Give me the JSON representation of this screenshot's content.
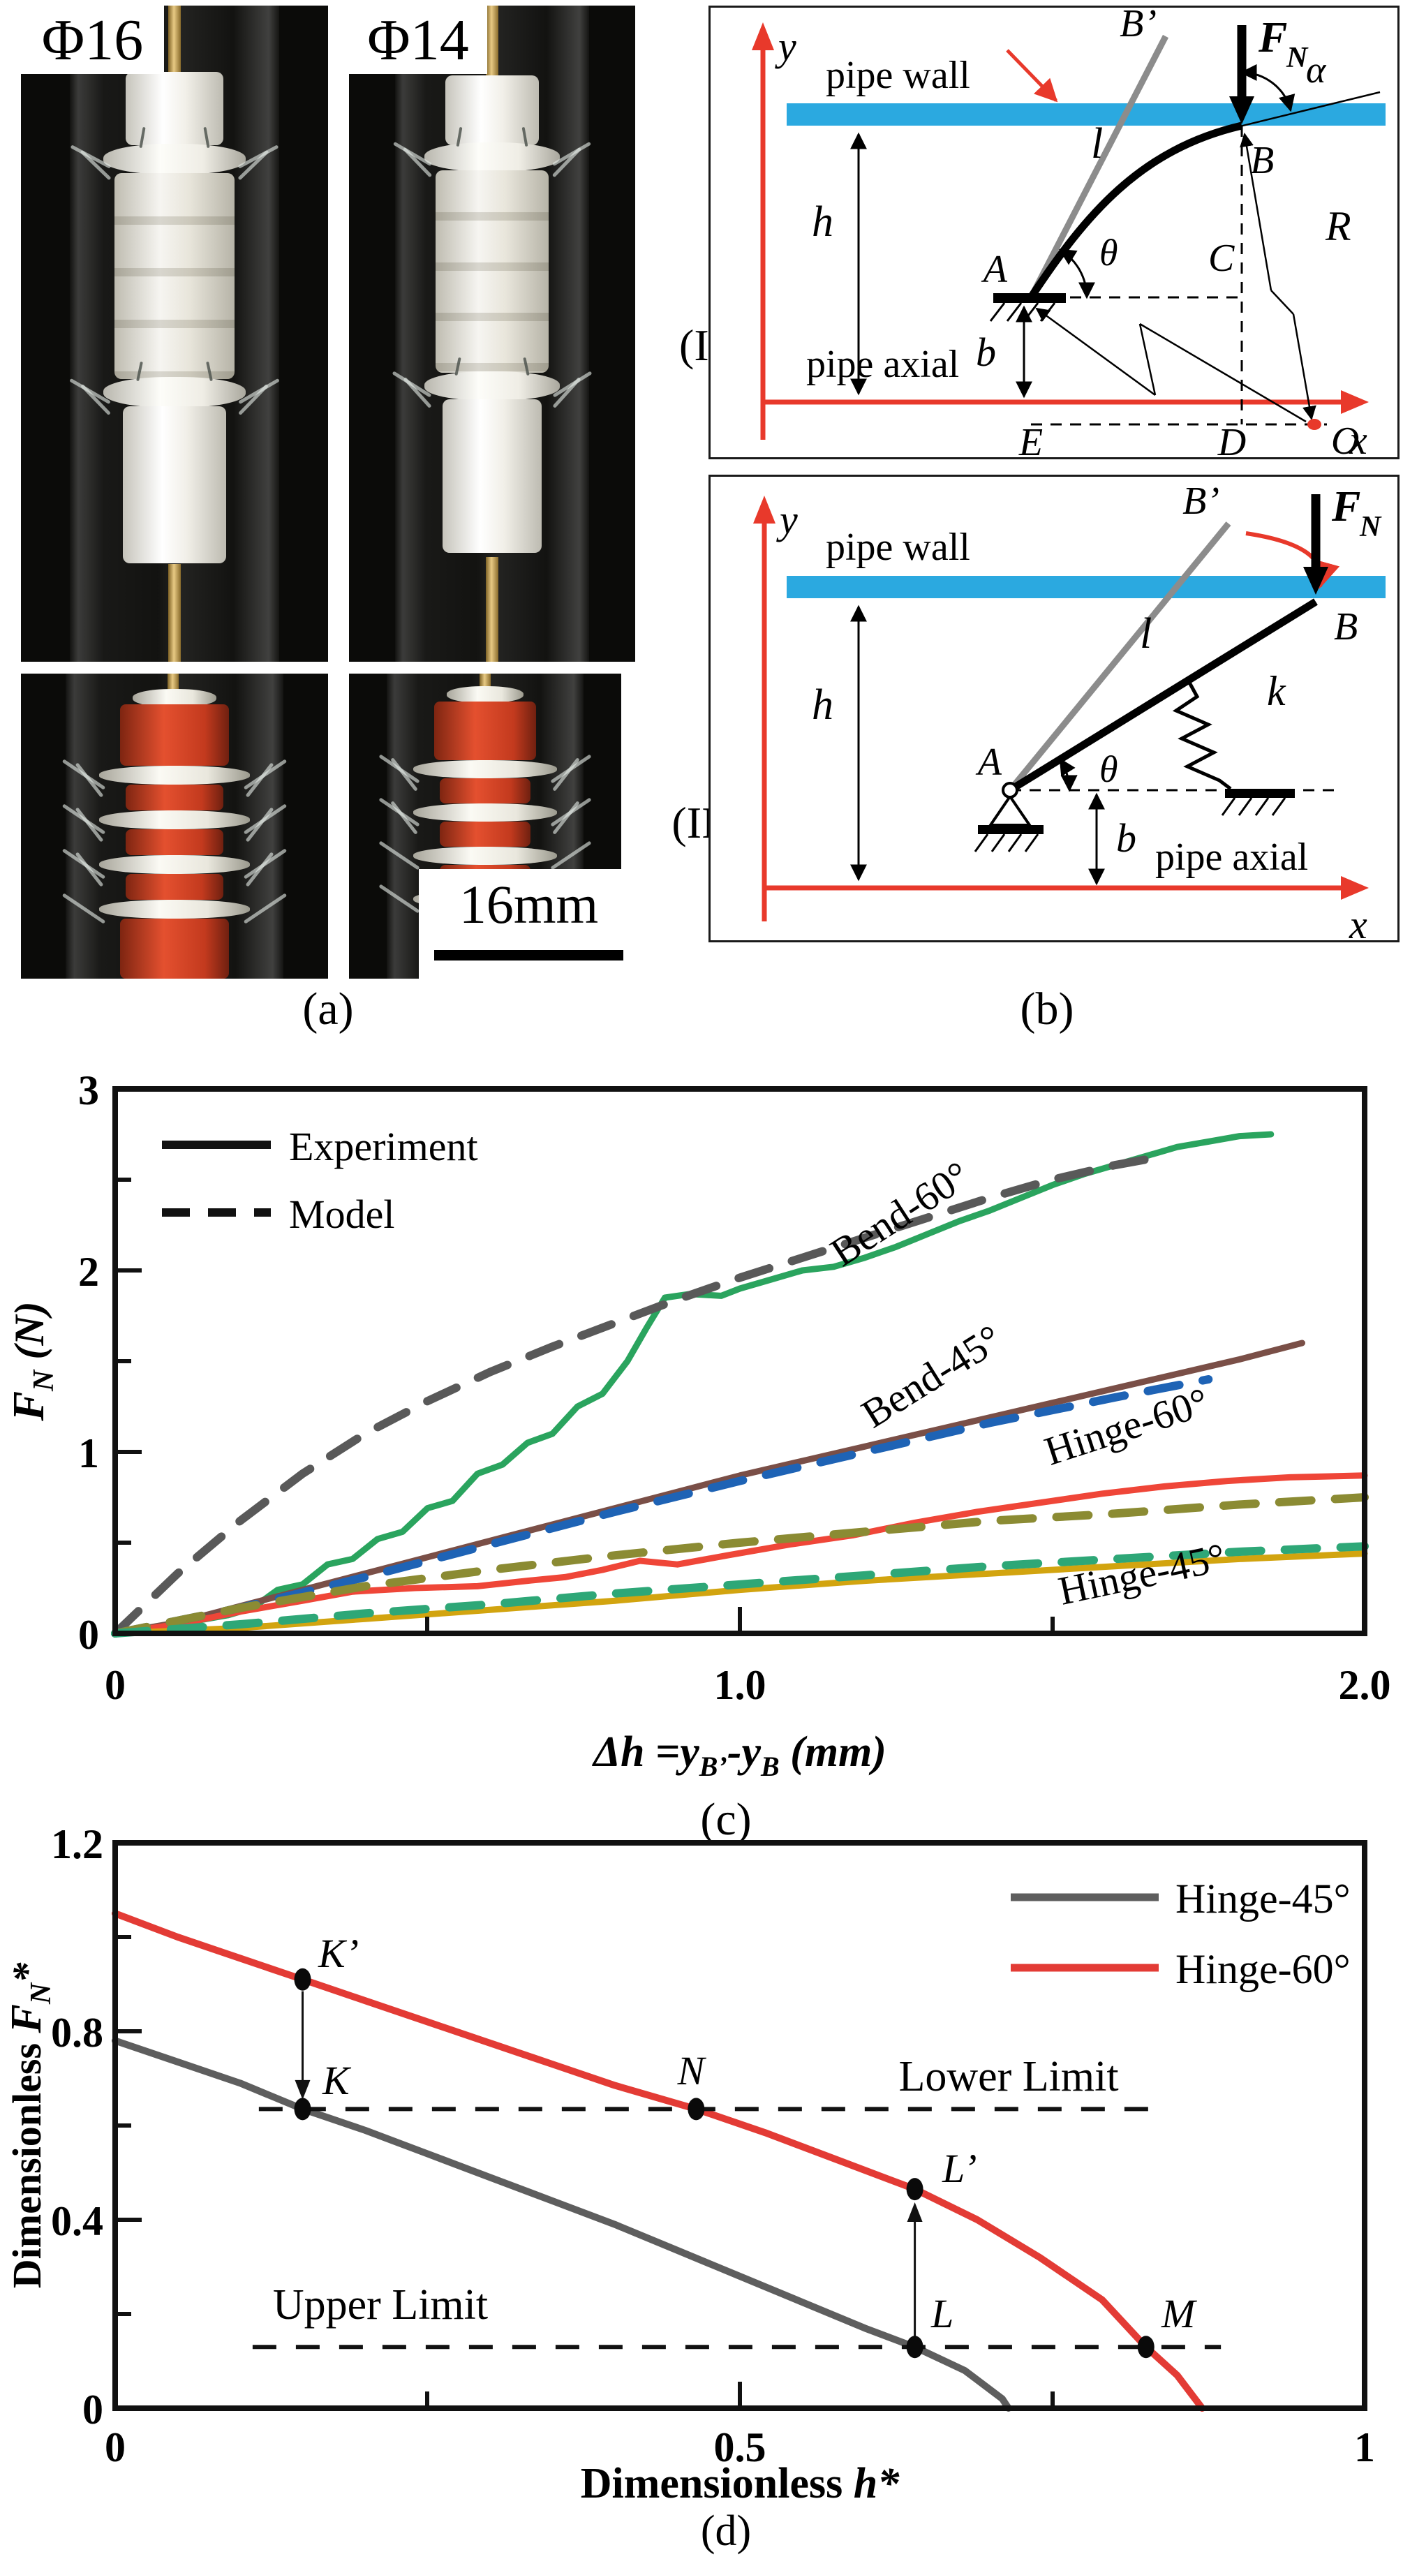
{
  "figure": {
    "captions": {
      "a": "(a)",
      "b": "(b)",
      "c": "(c)",
      "d": "(d)"
    },
    "row_labels": {
      "I": "(I)",
      "II": "(II)"
    }
  },
  "panel_a": {
    "label_phi16": "Φ16",
    "label_phi14": "Φ14",
    "scale_bar": "16mm"
  },
  "panel_b": {
    "colors": {
      "pipe_wall": "#2ba9e0",
      "axis": "#e8392b",
      "rod_gray": "#8c8c8c"
    },
    "diagram1": {
      "y": "y",
      "x": "x",
      "pipe_wall": "pipe wall",
      "pipe_axial": "pipe axial",
      "force": "F",
      "force_sub": "N",
      "alpha": "α",
      "theta": "θ",
      "h": "h",
      "l": "l",
      "b": "b",
      "R": "R",
      "A": "A",
      "B": "B",
      "B_prime": "B’",
      "C": "C",
      "D": "D",
      "E": "E",
      "O": "O"
    },
    "diagram2": {
      "y": "y",
      "x": "x",
      "pipe_wall": "pipe wall",
      "pipe_axial": "pipe axial",
      "force": "F",
      "force_sub": "N",
      "theta": "θ",
      "h": "h",
      "l": "l",
      "b": "b",
      "k": "k",
      "A": "A",
      "B": "B",
      "B_prime": "B’"
    }
  },
  "chart_c": {
    "legend": {
      "experiment": "Experiment",
      "model": "Model"
    },
    "yticks": [
      "0",
      "1",
      "2",
      "3"
    ],
    "xticks": [
      "0",
      "1.0",
      "2.0"
    ],
    "ylabel": {
      "f": "F",
      "sub": "N",
      "unit": " (N)"
    },
    "xlabel": {
      "p1": "Δh =",
      "y1": "y",
      "s1": "B’",
      "p2": "-",
      "y2": "y",
      "s2": "B",
      "p3": " (mm)"
    },
    "curve_labels": {
      "bend60": "Bend-60°",
      "bend45": "Bend-45°",
      "hinge60": "Hinge-60°",
      "hinge45": "Hinge-45°"
    }
  },
  "chart_d": {
    "legend": {
      "hinge45": "Hinge-45°",
      "hinge60": "Hinge-60°"
    },
    "yticks": [
      "0",
      "0.4",
      "0.8",
      "1.2"
    ],
    "xticks": [
      "0",
      "0.5",
      "1"
    ],
    "ylabel": {
      "p1": "Dimensionless ",
      "f": "F",
      "sub": "N",
      "star": "*"
    },
    "xlabel": {
      "p1": "Dimensionless ",
      "h": "h",
      "star": "*"
    },
    "limits": {
      "lower": "Lower Limit",
      "upper": "Upper Limit"
    }
  },
  "chart_data": [
    {
      "id": "c",
      "type": "line",
      "title": "",
      "xlabel": "Δh = yB’ - yB (mm)",
      "ylabel": "FN (N)",
      "xlim": [
        0,
        2
      ],
      "ylim": [
        0,
        3
      ],
      "xticks": [
        0,
        1.0,
        2.0
      ],
      "yticks": [
        0,
        1,
        2,
        3
      ],
      "grid": false,
      "legend_position": "top-left",
      "series": [
        {
          "name": "Bend-60° Experiment",
          "style": "solid",
          "color": "#2aa45e",
          "points": [
            [
              0,
              0
            ],
            [
              0.07,
              0.03
            ],
            [
              0.13,
              0.07
            ],
            [
              0.18,
              0.1
            ],
            [
              0.22,
              0.14
            ],
            [
              0.26,
              0.24
            ],
            [
              0.3,
              0.27
            ],
            [
              0.34,
              0.38
            ],
            [
              0.38,
              0.41
            ],
            [
              0.42,
              0.52
            ],
            [
              0.46,
              0.56
            ],
            [
              0.5,
              0.69
            ],
            [
              0.54,
              0.73
            ],
            [
              0.58,
              0.88
            ],
            [
              0.62,
              0.93
            ],
            [
              0.66,
              1.05
            ],
            [
              0.7,
              1.1
            ],
            [
              0.74,
              1.25
            ],
            [
              0.78,
              1.32
            ],
            [
              0.82,
              1.5
            ],
            [
              0.85,
              1.68
            ],
            [
              0.88,
              1.85
            ],
            [
              0.92,
              1.87
            ],
            [
              0.97,
              1.86
            ],
            [
              1.0,
              1.9
            ],
            [
              1.05,
              1.95
            ],
            [
              1.1,
              2.0
            ],
            [
              1.15,
              2.02
            ],
            [
              1.2,
              2.07
            ],
            [
              1.25,
              2.13
            ],
            [
              1.3,
              2.2
            ],
            [
              1.35,
              2.27
            ],
            [
              1.4,
              2.33
            ],
            [
              1.45,
              2.4
            ],
            [
              1.5,
              2.47
            ],
            [
              1.55,
              2.53
            ],
            [
              1.6,
              2.58
            ],
            [
              1.65,
              2.63
            ],
            [
              1.7,
              2.68
            ],
            [
              1.75,
              2.71
            ],
            [
              1.8,
              2.74
            ],
            [
              1.85,
              2.75
            ]
          ]
        },
        {
          "name": "Bend-45° Experiment",
          "style": "solid",
          "color": "#7a4f47",
          "points": [
            [
              0,
              0
            ],
            [
              0.1,
              0.06
            ],
            [
              0.2,
              0.15
            ],
            [
              0.3,
              0.24
            ],
            [
              0.4,
              0.33
            ],
            [
              0.5,
              0.42
            ],
            [
              0.6,
              0.51
            ],
            [
              0.7,
              0.6
            ],
            [
              0.8,
              0.69
            ],
            [
              0.9,
              0.78
            ],
            [
              1.0,
              0.87
            ],
            [
              1.1,
              0.95
            ],
            [
              1.2,
              1.03
            ],
            [
              1.3,
              1.11
            ],
            [
              1.4,
              1.19
            ],
            [
              1.5,
              1.27
            ],
            [
              1.6,
              1.35
            ],
            [
              1.7,
              1.43
            ],
            [
              1.8,
              1.51
            ],
            [
              1.9,
              1.6
            ]
          ]
        },
        {
          "name": "Hinge-60° Experiment",
          "style": "solid",
          "color": "#ef4638",
          "points": [
            [
              0,
              0
            ],
            [
              0.1,
              0.05
            ],
            [
              0.2,
              0.12
            ],
            [
              0.3,
              0.18
            ],
            [
              0.38,
              0.23
            ],
            [
              0.48,
              0.25
            ],
            [
              0.58,
              0.26
            ],
            [
              0.66,
              0.29
            ],
            [
              0.72,
              0.31
            ],
            [
              0.78,
              0.35
            ],
            [
              0.84,
              0.4
            ],
            [
              0.9,
              0.38
            ],
            [
              0.98,
              0.43
            ],
            [
              1.08,
              0.49
            ],
            [
              1.18,
              0.54
            ],
            [
              1.28,
              0.61
            ],
            [
              1.38,
              0.67
            ],
            [
              1.48,
              0.72
            ],
            [
              1.58,
              0.77
            ],
            [
              1.68,
              0.81
            ],
            [
              1.78,
              0.84
            ],
            [
              1.88,
              0.86
            ],
            [
              2.0,
              0.87
            ]
          ]
        },
        {
          "name": "Hinge-45° Experiment",
          "style": "solid",
          "color": "#d2a40f",
          "points": [
            [
              0,
              0
            ],
            [
              0.2,
              0.03
            ],
            [
              0.4,
              0.08
            ],
            [
              0.6,
              0.13
            ],
            [
              0.8,
              0.18
            ],
            [
              1.0,
              0.24
            ],
            [
              1.2,
              0.29
            ],
            [
              1.4,
              0.33
            ],
            [
              1.6,
              0.37
            ],
            [
              1.8,
              0.41
            ],
            [
              2.0,
              0.44
            ]
          ]
        },
        {
          "name": "Bend-60° Model",
          "style": "dashed",
          "color": "#595959",
          "points": [
            [
              0,
              0
            ],
            [
              0.1,
              0.33
            ],
            [
              0.2,
              0.62
            ],
            [
              0.3,
              0.88
            ],
            [
              0.4,
              1.1
            ],
            [
              0.5,
              1.28
            ],
            [
              0.6,
              1.44
            ],
            [
              0.7,
              1.58
            ],
            [
              0.8,
              1.71
            ],
            [
              0.9,
              1.84
            ],
            [
              1.0,
              1.96
            ],
            [
              1.1,
              2.07
            ],
            [
              1.2,
              2.18
            ],
            [
              1.3,
              2.29
            ],
            [
              1.4,
              2.4
            ],
            [
              1.5,
              2.5
            ],
            [
              1.6,
              2.58
            ],
            [
              1.68,
              2.63
            ]
          ]
        },
        {
          "name": "Bend-45° Model",
          "style": "dashed",
          "color": "#1e63b5",
          "points": [
            [
              0,
              0
            ],
            [
              0.2,
              0.14
            ],
            [
              0.4,
              0.31
            ],
            [
              0.6,
              0.49
            ],
            [
              0.8,
              0.67
            ],
            [
              1.0,
              0.84
            ],
            [
              1.2,
              1.0
            ],
            [
              1.4,
              1.16
            ],
            [
              1.6,
              1.3
            ],
            [
              1.75,
              1.4
            ]
          ]
        },
        {
          "name": "Hinge-60° Model",
          "style": "dashed",
          "color": "#8b8b33",
          "points": [
            [
              0,
              0
            ],
            [
              0.2,
              0.14
            ],
            [
              0.4,
              0.26
            ],
            [
              0.6,
              0.35
            ],
            [
              0.8,
              0.43
            ],
            [
              1.0,
              0.5
            ],
            [
              1.2,
              0.56
            ],
            [
              1.4,
              0.62
            ],
            [
              1.6,
              0.66
            ],
            [
              1.8,
              0.71
            ],
            [
              2.0,
              0.75
            ]
          ]
        },
        {
          "name": "Hinge-45° Model",
          "style": "dashed",
          "color": "#2ea777",
          "points": [
            [
              0,
              0
            ],
            [
              0.2,
              0.05
            ],
            [
              0.4,
              0.11
            ],
            [
              0.6,
              0.16
            ],
            [
              0.8,
              0.22
            ],
            [
              1.0,
              0.27
            ],
            [
              1.2,
              0.32
            ],
            [
              1.4,
              0.37
            ],
            [
              1.6,
              0.41
            ],
            [
              1.8,
              0.45
            ],
            [
              2.0,
              0.48
            ]
          ]
        }
      ]
    },
    {
      "id": "d",
      "type": "line",
      "title": "",
      "xlabel": "Dimensionless h*",
      "ylabel": "Dimensionless FN*",
      "xlim": [
        0,
        1
      ],
      "ylim": [
        0,
        1.2
      ],
      "xticks": [
        0,
        0.5,
        1
      ],
      "yticks": [
        0,
        0.4,
        0.8,
        1.2
      ],
      "grid": false,
      "legend_position": "top-right",
      "series": [
        {
          "name": "Hinge-45°",
          "style": "solid",
          "color": "#5e5e5e",
          "points": [
            [
              0,
              0.78
            ],
            [
              0.05,
              0.735
            ],
            [
              0.1,
              0.69
            ],
            [
              0.15,
              0.635
            ],
            [
              0.2,
              0.59
            ],
            [
              0.25,
              0.54
            ],
            [
              0.3,
              0.49
            ],
            [
              0.35,
              0.44
            ],
            [
              0.4,
              0.39
            ],
            [
              0.45,
              0.335
            ],
            [
              0.5,
              0.28
            ],
            [
              0.55,
              0.225
            ],
            [
              0.6,
              0.17
            ],
            [
              0.64,
              0.13
            ],
            [
              0.68,
              0.08
            ],
            [
              0.71,
              0.02
            ],
            [
              0.715,
              0
            ]
          ]
        },
        {
          "name": "Hinge-60°",
          "style": "solid",
          "color": "#e33b35",
          "points": [
            [
              0,
              1.05
            ],
            [
              0.05,
              1.0
            ],
            [
              0.1,
              0.955
            ],
            [
              0.15,
              0.91
            ],
            [
              0.2,
              0.865
            ],
            [
              0.25,
              0.82
            ],
            [
              0.3,
              0.775
            ],
            [
              0.35,
              0.73
            ],
            [
              0.4,
              0.685
            ],
            [
              0.465,
              0.635
            ],
            [
              0.52,
              0.585
            ],
            [
              0.58,
              0.525
            ],
            [
              0.64,
              0.465
            ],
            [
              0.69,
              0.4
            ],
            [
              0.74,
              0.32
            ],
            [
              0.79,
              0.23
            ],
            [
              0.825,
              0.13
            ],
            [
              0.85,
              0.07
            ],
            [
              0.87,
              0
            ]
          ]
        }
      ],
      "points": [
        {
          "label": "K’",
          "x": 0.15,
          "y": 0.91
        },
        {
          "label": "K",
          "x": 0.15,
          "y": 0.635
        },
        {
          "label": "N",
          "x": 0.465,
          "y": 0.635
        },
        {
          "label": "L’",
          "x": 0.64,
          "y": 0.465
        },
        {
          "label": "L",
          "x": 0.64,
          "y": 0.13
        },
        {
          "label": "M",
          "x": 0.825,
          "y": 0.13
        }
      ],
      "limit_lines": [
        {
          "label": "Lower Limit",
          "y": 0.635,
          "x1": 0.115,
          "x2": 0.835
        },
        {
          "label": "Upper Limit",
          "y": 0.13,
          "x1": 0.11,
          "x2": 0.885
        }
      ],
      "arrows": [
        {
          "x": 0.15,
          "from_y": 0.885,
          "to_y": 0.655
        },
        {
          "x": 0.64,
          "from_y": 0.152,
          "to_y": 0.437
        }
      ]
    }
  ]
}
